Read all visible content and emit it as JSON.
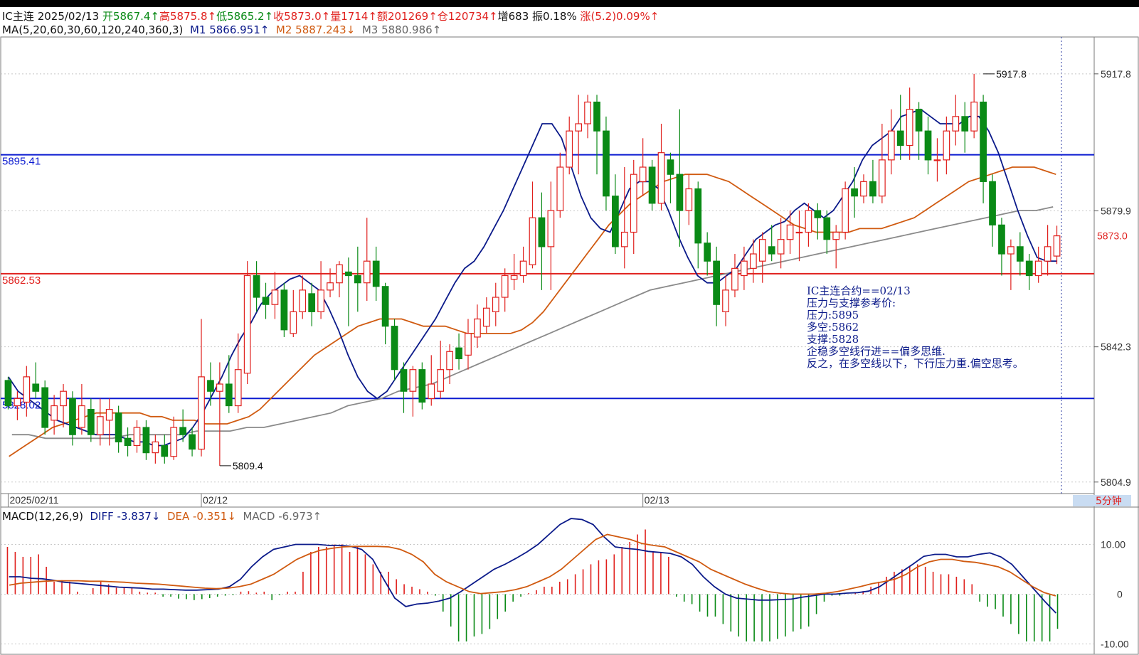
{
  "header": {
    "symbol": "IC主连",
    "date": "2025/02/13",
    "open": "开5867.4↑",
    "high": "高5875.8↑",
    "low": "低5865.2↑",
    "close": "收5873.0↑",
    "volume": "量1714↑",
    "amount": "额201269↑",
    "position": "仓120734↑",
    "increase": "增683",
    "amplitude": "振0.18%",
    "change": "涨(5.2)0.09%↑"
  },
  "ma_legend": {
    "params": "MA(5,20,60,30,60,120,240,360,3)",
    "m1": "M1 5866.951↑",
    "m2": "M2 5887.243↓",
    "m3": "M3 5880.986↑"
  },
  "macd_legend": {
    "params": "MACD(12,26,9)",
    "diff": "DIFF -3.837↓",
    "dea": "DEA -0.351↓",
    "macd": "MACD -6.973↑"
  },
  "note": {
    "lines": [
      "IC主连合约==02/13",
      "压力与支撑参考价:",
      "压力:5895",
      "多空:5862",
      "支撑:5828",
      "企稳多空线行进==偏多思维.",
      "反之，在多空线以下，下行压力重.偏空思考。"
    ]
  },
  "period_label": "5分钟",
  "colors": {
    "up": "#e0201d",
    "down": "#0a8a16",
    "m1": "#0b1a8a",
    "m2": "#d05a10",
    "m3": "#8a8a8a",
    "level_blue": "#0b1ad0",
    "level_red": "#e0201d"
  },
  "chart_data": {
    "type": "candlestick",
    "price_axis": {
      "ticks": [
        5917.8,
        5879.9,
        5842.3,
        5804.9
      ],
      "ylim": [
        5802.5,
        5928
      ]
    },
    "macd_axis": {
      "ticks": [
        "10.00",
        "0",
        "-10.00"
      ],
      "ylim": [
        -10.8,
        15.5
      ]
    },
    "date_labels": [
      {
        "label": "2025/02/11",
        "index": 0
      },
      {
        "label": "02/12",
        "index": 21
      },
      {
        "label": "02/13",
        "index": 69
      }
    ],
    "price_levels": [
      {
        "label": "5895.41",
        "value": 5895.41,
        "color": "#0b1ad0"
      },
      {
        "label": "5862.53",
        "value": 5862.53,
        "color": "#e0201d"
      },
      {
        "label": "5828.02",
        "value": 5828.02,
        "color": "#0b1ad0"
      }
    ],
    "current_price": {
      "label": "5873.0",
      "value": 5873.0
    },
    "extremes": [
      {
        "label": "5917.8",
        "index": 106,
        "value": 5917.8
      },
      {
        "label": "5809.4",
        "index": 23,
        "value": 5809.4
      }
    ],
    "candles": [
      [
        5833,
        5826,
        5834,
        5825
      ],
      [
        5826,
        5828,
        5830,
        5822
      ],
      [
        5827,
        5834,
        5837,
        5823
      ],
      [
        5832,
        5830,
        5838,
        5828
      ],
      [
        5831,
        5820,
        5833,
        5818
      ],
      [
        5822,
        5826,
        5829,
        5818
      ],
      [
        5826,
        5830,
        5832,
        5820
      ],
      [
        5828,
        5818,
        5830,
        5815
      ],
      [
        5820,
        5826,
        5832,
        5818
      ],
      [
        5825,
        5818,
        5828,
        5816
      ],
      [
        5818,
        5823,
        5828,
        5815
      ],
      [
        5822,
        5825,
        5828,
        5815
      ],
      [
        5824,
        5816,
        5826,
        5813
      ],
      [
        5817,
        5815,
        5820,
        5812
      ],
      [
        5815,
        5820,
        5822,
        5813
      ],
      [
        5820,
        5813,
        5822,
        5811
      ],
      [
        5813,
        5816,
        5818,
        5810
      ],
      [
        5815,
        5812,
        5818,
        5810
      ],
      [
        5812,
        5820,
        5823,
        5811
      ],
      [
        5820,
        5818,
        5825,
        5816
      ],
      [
        5818,
        5814,
        5820,
        5812
      ],
      [
        5814,
        5834,
        5850,
        5812
      ],
      [
        5833,
        5830,
        5838,
        5826
      ],
      [
        5830,
        5832,
        5838,
        5809.4
      ],
      [
        5832,
        5826,
        5840,
        5824
      ],
      [
        5826,
        5836,
        5846,
        5824
      ],
      [
        5835,
        5862,
        5866,
        5832
      ],
      [
        5862,
        5856,
        5866,
        5852
      ],
      [
        5856,
        5854,
        5860,
        5850
      ],
      [
        5854,
        5858,
        5863,
        5850
      ],
      [
        5858,
        5847,
        5860,
        5845
      ],
      [
        5846,
        5852,
        5858,
        5845
      ],
      [
        5852,
        5858,
        5862,
        5850
      ],
      [
        5857,
        5852,
        5860,
        5848
      ],
      [
        5852,
        5858,
        5866,
        5850
      ],
      [
        5858,
        5860,
        5864,
        5856
      ],
      [
        5860,
        5865,
        5866,
        5856
      ],
      [
        5863,
        5862,
        5867,
        5848
      ],
      [
        5862,
        5860,
        5870,
        5852
      ],
      [
        5860,
        5866,
        5878,
        5855
      ],
      [
        5866,
        5859,
        5870,
        5855
      ],
      [
        5859,
        5848,
        5860,
        5843
      ],
      [
        5848,
        5836,
        5850,
        5833
      ],
      [
        5836,
        5830,
        5838,
        5824
      ],
      [
        5830,
        5836,
        5837,
        5823
      ],
      [
        5836,
        5827,
        5838,
        5825
      ],
      [
        5828,
        5832,
        5840,
        5826
      ],
      [
        5830,
        5836,
        5844,
        5828
      ],
      [
        5836,
        5841,
        5843,
        5832
      ],
      [
        5842,
        5839,
        5846,
        5836
      ],
      [
        5840,
        5846,
        5850,
        5836
      ],
      [
        5845,
        5850,
        5854,
        5842
      ],
      [
        5848,
        5853,
        5856,
        5846
      ],
      [
        5852,
        5856,
        5860,
        5848
      ],
      [
        5856,
        5862,
        5864,
        5852
      ],
      [
        5861,
        5862,
        5868,
        5858
      ],
      [
        5862,
        5866,
        5870,
        5860
      ],
      [
        5865,
        5878,
        5888,
        5864
      ],
      [
        5878,
        5870,
        5885,
        5858
      ],
      [
        5870,
        5880,
        5888,
        5858
      ],
      [
        5880,
        5892,
        5896,
        5878
      ],
      [
        5892,
        5902,
        5906,
        5890
      ],
      [
        5902,
        5904,
        5912,
        5890
      ],
      [
        5904,
        5910,
        5912,
        5900
      ],
      [
        5910,
        5902,
        5912,
        5890
      ],
      [
        5902,
        5884,
        5906,
        5880
      ],
      [
        5884,
        5870,
        5890,
        5868
      ],
      [
        5870,
        5874,
        5892,
        5864
      ],
      [
        5874,
        5890,
        5894,
        5868
      ],
      [
        5888,
        5892,
        5900,
        5884
      ],
      [
        5892,
        5882,
        5894,
        5880
      ],
      [
        5882,
        5896,
        5904,
        5880
      ],
      [
        5894,
        5890,
        5896,
        5882
      ],
      [
        5890,
        5880,
        5908,
        5870
      ],
      [
        5880,
        5886,
        5890,
        5876
      ],
      [
        5886,
        5871,
        5888,
        5864
      ],
      [
        5871,
        5866,
        5874,
        5862
      ],
      [
        5866,
        5854,
        5870,
        5848
      ],
      [
        5852,
        5858,
        5862,
        5848
      ],
      [
        5858,
        5864,
        5868,
        5856
      ],
      [
        5862,
        5866,
        5870,
        5858
      ],
      [
        5864,
        5868,
        5872,
        5860
      ],
      [
        5866,
        5872,
        5874,
        5860
      ],
      [
        5870,
        5868,
        5876,
        5866
      ],
      [
        5868,
        5872,
        5878,
        5864
      ],
      [
        5872,
        5876,
        5880,
        5868
      ],
      [
        5874,
        5874,
        5880,
        5866
      ],
      [
        5874,
        5880,
        5882,
        5870
      ],
      [
        5880,
        5878,
        5882,
        5872
      ],
      [
        5878,
        5872,
        5880,
        5868
      ],
      [
        5872,
        5874,
        5876,
        5864
      ],
      [
        5874,
        5886,
        5888,
        5872
      ],
      [
        5886,
        5884,
        5892,
        5878
      ],
      [
        5884,
        5888,
        5890,
        5882
      ],
      [
        5888,
        5884,
        5894,
        5882
      ],
      [
        5884,
        5894,
        5904,
        5882
      ],
      [
        5894,
        5902,
        5908,
        5890
      ],
      [
        5902,
        5898,
        5912,
        5894
      ],
      [
        5898,
        5908,
        5914,
        5894
      ],
      [
        5908,
        5902,
        5910,
        5894
      ],
      [
        5902,
        5894,
        5906,
        5890
      ],
      [
        5894,
        5894,
        5900,
        5888
      ],
      [
        5894,
        5902,
        5906,
        5890
      ],
      [
        5902,
        5906,
        5912,
        5898
      ],
      [
        5906,
        5902,
        5910,
        5896
      ],
      [
        5902,
        5910,
        5917.8,
        5900
      ],
      [
        5910,
        5888,
        5912,
        5882
      ],
      [
        5888,
        5876,
        5890,
        5870
      ],
      [
        5876,
        5868,
        5878,
        5862
      ],
      [
        5868,
        5870,
        5872,
        5858
      ],
      [
        5870,
        5866,
        5874,
        5862
      ],
      [
        5866,
        5862,
        5868,
        5858
      ],
      [
        5862,
        5866,
        5870,
        5860
      ],
      [
        5866,
        5870,
        5876,
        5862
      ],
      [
        5867.4,
        5873.0,
        5875.8,
        5865.2
      ]
    ],
    "m1": [
      5834,
      5830,
      5828,
      5826,
      5824,
      5822,
      5821,
      5820,
      5819,
      5818,
      5818,
      5818,
      5817,
      5816,
      5816,
      5815,
      5815,
      5816,
      5817,
      5820,
      5824,
      5829,
      5834,
      5840,
      5845,
      5849,
      5854,
      5857,
      5859,
      5861,
      5862,
      5860,
      5858,
      5853,
      5847,
      5840,
      5834,
      5830,
      5828,
      5830,
      5834,
      5838,
      5842,
      5846,
      5850,
      5855,
      5860,
      5864,
      5866,
      5870,
      5875,
      5880,
      5886,
      5892,
      5898,
      5904,
      5904,
      5900,
      5892,
      5884,
      5878,
      5875,
      5874,
      5880,
      5886,
      5888,
      5888,
      5886,
      5880,
      5873,
      5867,
      5862,
      5860,
      5860,
      5862,
      5864,
      5868,
      5872,
      5874,
      5876,
      5877,
      5880,
      5882,
      5880,
      5878,
      5880,
      5884,
      5888,
      5894,
      5898,
      5900,
      5902,
      5906,
      5907,
      5908,
      5906,
      5904,
      5904,
      5904,
      5906,
      5906,
      5902,
      5896,
      5888,
      5880,
      5873,
      5867,
      5866,
      5866
    ],
    "m2": [
      5812,
      5814,
      5816,
      5818,
      5820,
      5821,
      5822,
      5823,
      5824,
      5824,
      5824,
      5824,
      5824,
      5823,
      5823,
      5822,
      5822,
      5822,
      5821,
      5821,
      5821,
      5822,
      5823,
      5825,
      5828,
      5831,
      5834,
      5837,
      5840,
      5842,
      5844,
      5846,
      5848,
      5849,
      5850,
      5850,
      5850,
      5849,
      5848,
      5848,
      5848,
      5847,
      5846,
      5846,
      5846,
      5846,
      5846,
      5847,
      5849,
      5852,
      5856,
      5860,
      5864,
      5868,
      5872,
      5876,
      5879,
      5882,
      5884,
      5886,
      5888,
      5889,
      5890,
      5890,
      5890,
      5889,
      5888,
      5886,
      5884,
      5882,
      5880,
      5878,
      5876,
      5875,
      5874,
      5874,
      5874,
      5874,
      5875,
      5875,
      5875,
      5876,
      5877,
      5878,
      5880,
      5882,
      5884,
      5886,
      5888,
      5889,
      5890,
      5891,
      5892,
      5892,
      5892,
      5891,
      5890
    ],
    "m3": [
      5818,
      5818,
      5817,
      5817,
      5817,
      5817,
      5817,
      5818,
      5818,
      5818,
      5818,
      5819,
      5819,
      5819,
      5820,
      5820,
      5821,
      5822,
      5823,
      5824,
      5826,
      5827,
      5828,
      5830,
      5831,
      5832,
      5834,
      5836,
      5838,
      5840,
      5842,
      5844,
      5846,
      5848,
      5850,
      5852,
      5854,
      5856,
      5858,
      5859,
      5860,
      5861,
      5862,
      5863,
      5864,
      5865,
      5866,
      5867,
      5868,
      5869,
      5870,
      5871,
      5872,
      5873,
      5874,
      5875,
      5876,
      5877,
      5878,
      5879,
      5880,
      5880,
      5881
    ],
    "macd": {
      "diff": [
        3.5,
        3.5,
        3.2,
        3.1,
        2.8,
        2.4,
        2.2,
        2.0,
        1.8,
        1.6,
        1.4,
        1.3,
        1.2,
        1.0,
        1.0,
        0.9,
        0.8,
        0.8,
        0.9,
        1.0,
        1.5,
        3.0,
        5.5,
        7.5,
        9.0,
        9.5,
        10.0,
        10.0,
        10.0,
        9.8,
        9.8,
        9.6,
        9.0,
        7.0,
        3.0,
        -0.8,
        -2.5,
        -2.0,
        -1.8,
        -1.4,
        -0.8,
        0.5,
        2.0,
        3.5,
        5.0,
        6.0,
        7.2,
        8.5,
        10.0,
        12.0,
        14.0,
        15.2,
        15.0,
        14.0,
        11.5,
        9.5,
        9.2,
        9.0,
        8.6,
        8.4,
        8.2,
        7.5,
        6.0,
        3.5,
        1.5,
        0.0,
        -0.8,
        -1.0,
        -1.2,
        -1.2,
        -1.1,
        -1.0,
        -0.6,
        -0.3,
        0.0,
        0.0,
        0.2,
        0.3,
        0.6,
        1.5,
        3.0,
        4.5,
        6.0,
        7.6,
        8.0,
        8.0,
        7.5,
        7.5,
        8.0,
        8.3,
        7.5,
        6.0,
        3.5,
        1.0,
        -1.5,
        -3.8
      ],
      "dea": [
        1.8,
        2.2,
        2.4,
        2.6,
        2.7,
        2.7,
        2.7,
        2.6,
        2.6,
        2.5,
        2.4,
        2.2,
        2.1,
        2.0,
        1.8,
        1.6,
        1.4,
        1.2,
        1.1,
        1.2,
        1.5,
        2.0,
        3.0,
        4.0,
        5.5,
        7.0,
        8.0,
        8.8,
        9.2,
        9.5,
        9.6,
        9.6,
        9.6,
        9.5,
        9.0,
        8.0,
        6.5,
        4.0,
        2.5,
        1.5,
        0.5,
        0.1,
        0.3,
        0.5,
        0.9,
        1.5,
        2.5,
        3.5,
        5.0,
        7.0,
        9.0,
        11.0,
        12.0,
        11.5,
        11.0,
        10.2,
        9.8,
        9.5,
        8.5,
        7.5,
        6.5,
        5.0,
        4.0,
        3.0,
        2.0,
        1.2,
        0.5,
        0.2,
        0.0,
        0.0,
        0.0,
        0.2,
        0.5,
        1.0,
        1.5,
        2.1,
        2.5,
        3.0,
        4.0,
        5.5,
        6.5,
        7.0,
        7.0,
        6.6,
        6.4,
        6.0,
        5.5,
        4.5,
        3.0,
        1.5,
        0.3,
        -0.351
      ],
      "hist": [
        9.5,
        8.5,
        7.5,
        7.5,
        8.0,
        5.5,
        2.5,
        2.8,
        2.5,
        0.5,
        0,
        1.2,
        2.6,
        2.0,
        1.3,
        1.3,
        1.2,
        0.5,
        0.3,
        0.3,
        -0.5,
        -0.5,
        -0.9,
        -1.0,
        -1.2,
        -1.0,
        -0.8,
        -0.5,
        -0.3,
        -0.2,
        0.5,
        0.6,
        0.3,
        0.5,
        -1.2,
        -0.2,
        0.5,
        0.5,
        4.5,
        8.5,
        9.5,
        9.5,
        10.0,
        10.0,
        8.5,
        9.5,
        8.0,
        6.0,
        4.5,
        4.5,
        3.0,
        2.0,
        1.5,
        1.0,
        0.5,
        -0.3,
        -3.5,
        -6.5,
        -9.5,
        -9.5,
        -8.5,
        -8.0,
        -7.0,
        -5.0,
        -3.5,
        -1.5,
        -0.5,
        0.2,
        0.8,
        1.5,
        1.5,
        2.5,
        3.0,
        4.0,
        5.0,
        6.0,
        6.8,
        7.0,
        8.0,
        9.5,
        10.5,
        12.0,
        13.0,
        8.5,
        8.5,
        7.5,
        -0.5,
        -1.5,
        -2.0,
        -3.5,
        -4.5,
        -4.5,
        -6.0,
        -7.5,
        -8.5,
        -9.5,
        -9.5,
        -9.5,
        -9.5,
        -9.0,
        -8.5,
        -7.5,
        -7.0,
        -6.5,
        -4.0,
        -1.5,
        -0.3,
        -0.3,
        0,
        0.3,
        0.6,
        1.5,
        2.5,
        3.5,
        4.5,
        5.0,
        5.5,
        6.0,
        5.5,
        4.5,
        4.0,
        4.0,
        3.5,
        3.0,
        2.0,
        -1.5,
        -2.5,
        -3.0,
        -4.5,
        -6.0,
        -8.0,
        -9.5,
        -9.5,
        -9.5,
        -9.5,
        -6.973
      ]
    }
  }
}
